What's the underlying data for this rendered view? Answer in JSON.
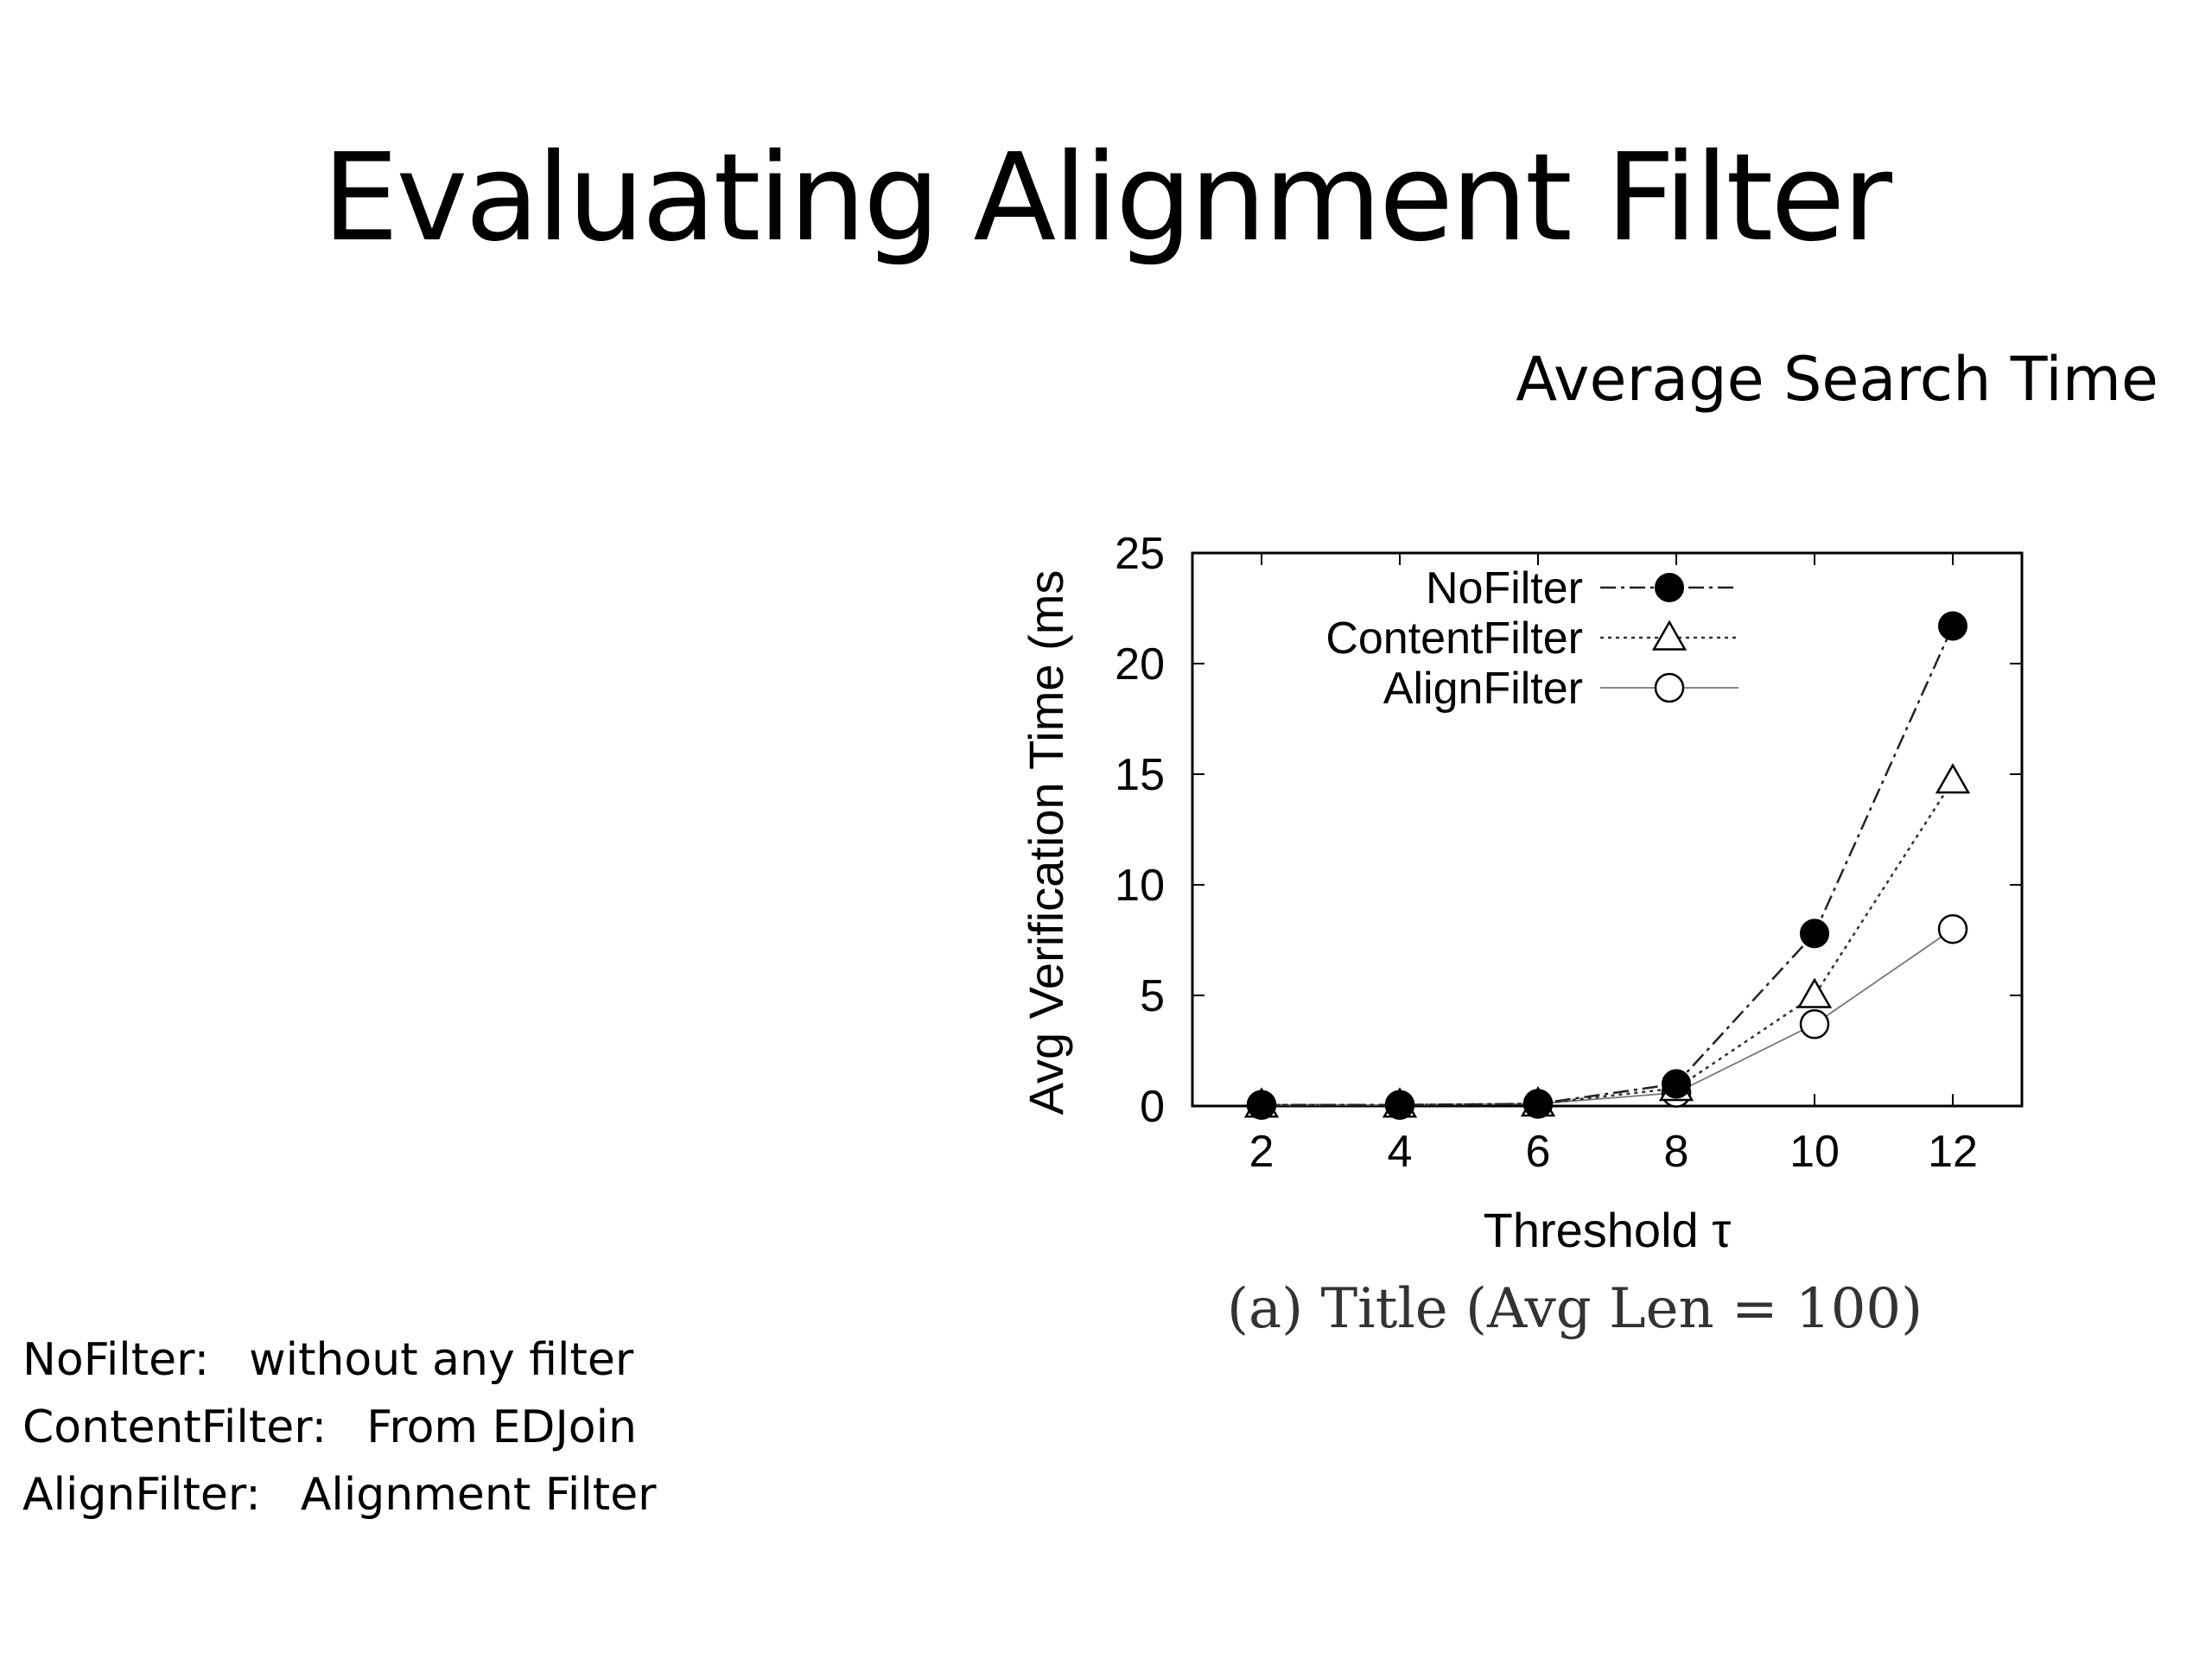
{
  "slide": {
    "title": "Evaluating Alignment Filter",
    "subtitle": "Average Search Time",
    "definitions": [
      {
        "term": "NoFilter:",
        "description": "without any filter"
      },
      {
        "term": "ContentFilter:",
        "description": "From EDJoin"
      },
      {
        "term": "AlignFilter:",
        "description": "Alignment Filter"
      }
    ]
  },
  "chart_data": {
    "type": "line",
    "title": "",
    "caption": "(a) Title (Avg Len = 100)",
    "xlabel": "Threshold τ",
    "ylabel": "Avg Verification Time (ms",
    "x": [
      2,
      4,
      6,
      8,
      10,
      12
    ],
    "xlim": [
      1,
      13
    ],
    "ylim": [
      0,
      25
    ],
    "xticks": [
      "2",
      "4",
      "6",
      "8",
      "10",
      "12"
    ],
    "yticks": [
      "0",
      "5",
      "10",
      "15",
      "20",
      "25"
    ],
    "legend": "top-left",
    "grid": false,
    "series": [
      {
        "name": "NoFilter",
        "values": [
          0.05,
          0.05,
          0.1,
          1.0,
          7.8,
          21.7
        ],
        "marker": "filled-circle",
        "dash": "dash-dot",
        "color": "#000000"
      },
      {
        "name": "ContentFilter",
        "values": [
          0.05,
          0.05,
          0.1,
          0.8,
          5.0,
          14.7
        ],
        "marker": "triangle",
        "dash": "dotted",
        "color": "#000000"
      },
      {
        "name": "AlignFilter",
        "values": [
          0.05,
          0.05,
          0.1,
          0.6,
          3.7,
          8.0
        ],
        "marker": "open-circle",
        "dash": "solid-light",
        "color": "#000000"
      }
    ]
  }
}
